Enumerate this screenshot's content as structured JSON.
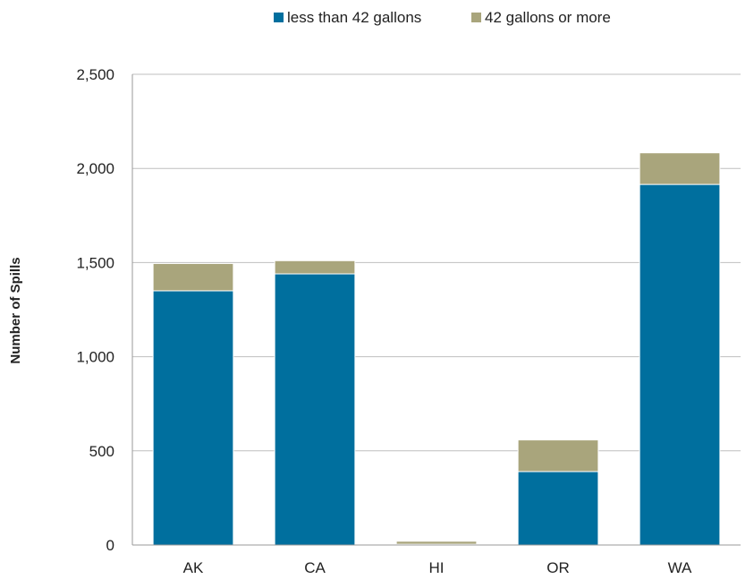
{
  "chart_data": {
    "type": "bar",
    "stacked": true,
    "categories": [
      "AK",
      "CA",
      "HI",
      "OR",
      "WA"
    ],
    "series": [
      {
        "name": "less than 42 gallons",
        "color": "#006f9e",
        "values": [
          1350,
          1440,
          4,
          390,
          1915
        ]
      },
      {
        "name": "42 gallons or more",
        "color": "#a9a57c",
        "values": [
          145,
          70,
          16,
          168,
          168
        ]
      }
    ],
    "ylabel": "Number of Spills",
    "ylim": [
      0,
      2500
    ],
    "yticks": [
      0,
      500,
      1000,
      1500,
      2000,
      2500
    ],
    "ytick_labels": [
      "0",
      "500",
      "1,000",
      "1,500",
      "2,000",
      "2,500"
    ],
    "grid": true,
    "legend": "top-center"
  }
}
